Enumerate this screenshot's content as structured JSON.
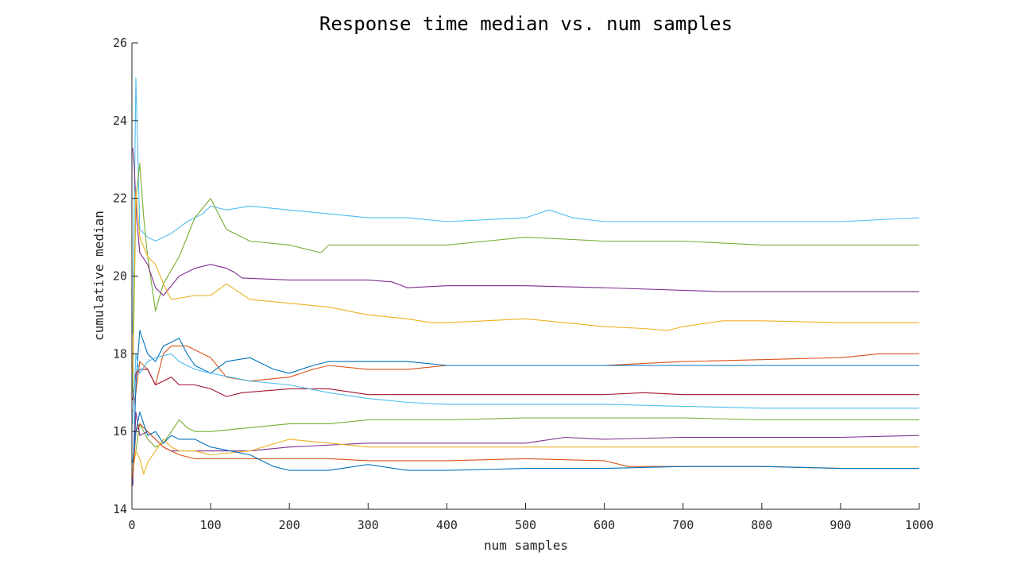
{
  "chart_data": {
    "type": "line",
    "title": "Response time median vs. num samples",
    "xlabel": "num samples",
    "ylabel": "cumulative median",
    "xlim": [
      0,
      1000
    ],
    "ylim": [
      14,
      26
    ],
    "xticks": [
      0,
      100,
      200,
      300,
      400,
      500,
      600,
      700,
      800,
      900,
      1000
    ],
    "yticks": [
      14,
      16,
      18,
      20,
      22,
      24,
      26
    ],
    "grid": false,
    "legend": "none",
    "colors": [
      "#4DBEEE",
      "#77AC30",
      "#7E2F8E",
      "#EDB120",
      "#D95319",
      "#0072BD",
      "#A2142F",
      "#4DBEEE",
      "#77AC30",
      "#7E2F8E",
      "#EDB120",
      "#D95319",
      "#0072BD"
    ],
    "series": [
      {
        "x": [
          1,
          5,
          10,
          20,
          30,
          50,
          70,
          90,
          100,
          120,
          150,
          200,
          250,
          300,
          350,
          400,
          500,
          530,
          560,
          600,
          700,
          800,
          900,
          1000
        ],
        "values": [
          18.5,
          25.1,
          21.2,
          21.0,
          20.9,
          21.1,
          21.4,
          21.6,
          21.8,
          21.7,
          21.8,
          21.7,
          21.6,
          21.5,
          21.5,
          21.4,
          21.5,
          21.7,
          21.5,
          21.4,
          21.4,
          21.4,
          21.4,
          21.5
        ]
      },
      {
        "x": [
          1,
          5,
          10,
          15,
          20,
          30,
          40,
          60,
          80,
          100,
          120,
          150,
          200,
          240,
          250,
          300,
          400,
          500,
          600,
          700,
          800,
          900,
          1000
        ],
        "values": [
          17.0,
          22.0,
          22.9,
          21.5,
          20.5,
          19.1,
          19.8,
          20.5,
          21.5,
          22.0,
          21.2,
          20.9,
          20.8,
          20.6,
          20.8,
          20.8,
          20.8,
          21.0,
          20.9,
          20.9,
          20.8,
          20.8,
          20.8
        ]
      },
      {
        "x": [
          1,
          3,
          6,
          10,
          20,
          30,
          40,
          60,
          80,
          100,
          120,
          130,
          140,
          200,
          300,
          330,
          350,
          400,
          500,
          600,
          750,
          800,
          900,
          1000
        ],
        "values": [
          23.3,
          22.8,
          21.5,
          20.6,
          20.3,
          19.7,
          19.5,
          20.0,
          20.2,
          20.3,
          20.2,
          20.1,
          19.95,
          19.9,
          19.9,
          19.85,
          19.7,
          19.75,
          19.75,
          19.7,
          19.6,
          19.6,
          19.6,
          19.6
        ]
      },
      {
        "x": [
          1,
          5,
          10,
          20,
          30,
          40,
          50,
          80,
          100,
          120,
          150,
          200,
          250,
          300,
          350,
          380,
          400,
          500,
          600,
          650,
          680,
          700,
          750,
          800,
          900,
          1000
        ],
        "values": [
          17.5,
          22.2,
          21.0,
          20.5,
          20.3,
          19.8,
          19.4,
          19.5,
          19.5,
          19.8,
          19.4,
          19.3,
          19.2,
          19.0,
          18.9,
          18.8,
          18.8,
          18.9,
          18.7,
          18.65,
          18.6,
          18.7,
          18.85,
          18.85,
          18.8,
          18.8
        ]
      },
      {
        "x": [
          1,
          5,
          10,
          20,
          30,
          40,
          50,
          60,
          70,
          80,
          100,
          120,
          150,
          200,
          230,
          250,
          300,
          350,
          400,
          500,
          600,
          700,
          800,
          900,
          950,
          1000
        ],
        "values": [
          16.5,
          17.0,
          17.8,
          17.6,
          17.2,
          18.0,
          18.2,
          18.2,
          18.2,
          18.1,
          17.9,
          17.4,
          17.3,
          17.4,
          17.6,
          17.7,
          17.6,
          17.6,
          17.7,
          17.7,
          17.7,
          17.8,
          17.85,
          17.9,
          18.0,
          18.0
        ]
      },
      {
        "x": [
          1,
          5,
          10,
          20,
          30,
          40,
          50,
          60,
          70,
          80,
          100,
          120,
          150,
          180,
          200,
          230,
          250,
          300,
          350,
          400,
          500,
          600,
          700,
          800,
          900,
          1000
        ],
        "values": [
          14.6,
          17.2,
          18.6,
          18.0,
          17.8,
          18.2,
          18.3,
          18.4,
          18.0,
          17.7,
          17.5,
          17.8,
          17.9,
          17.6,
          17.5,
          17.7,
          17.8,
          17.8,
          17.8,
          17.7,
          17.7,
          17.7,
          17.7,
          17.7,
          17.7,
          17.7
        ]
      },
      {
        "x": [
          1,
          5,
          10,
          20,
          30,
          40,
          50,
          60,
          80,
          100,
          120,
          140,
          200,
          250,
          300,
          400,
          500,
          600,
          650,
          700,
          800,
          900,
          1000
        ],
        "values": [
          16.8,
          17.5,
          17.6,
          17.6,
          17.2,
          17.3,
          17.4,
          17.2,
          17.2,
          17.1,
          16.9,
          17.0,
          17.1,
          17.1,
          16.95,
          16.95,
          16.95,
          16.95,
          17.0,
          16.95,
          16.95,
          16.95,
          16.95
        ]
      },
      {
        "x": [
          1,
          5,
          10,
          20,
          30,
          50,
          60,
          80,
          100,
          150,
          200,
          250,
          300,
          350,
          400,
          500,
          600,
          700,
          800,
          900,
          1000
        ],
        "values": [
          16.2,
          18.0,
          17.5,
          17.8,
          17.9,
          18.0,
          17.8,
          17.6,
          17.5,
          17.3,
          17.2,
          17.0,
          16.85,
          16.75,
          16.7,
          16.7,
          16.7,
          16.65,
          16.6,
          16.6,
          16.6
        ]
      },
      {
        "x": [
          1,
          5,
          10,
          20,
          30,
          40,
          50,
          60,
          70,
          80,
          100,
          150,
          200,
          250,
          300,
          400,
          500,
          600,
          700,
          800,
          900,
          1000
        ],
        "values": [
          15.0,
          15.5,
          16.2,
          15.8,
          15.6,
          15.7,
          16.0,
          16.3,
          16.1,
          16.0,
          16.0,
          16.1,
          16.2,
          16.2,
          16.3,
          16.3,
          16.35,
          16.35,
          16.35,
          16.3,
          16.3,
          16.3
        ]
      },
      {
        "x": [
          1,
          5,
          10,
          20,
          30,
          40,
          50,
          60,
          80,
          100,
          150,
          200,
          300,
          400,
          500,
          550,
          600,
          700,
          800,
          900,
          1000
        ],
        "values": [
          14.6,
          16.5,
          15.9,
          16.0,
          15.8,
          15.6,
          15.5,
          15.5,
          15.5,
          15.5,
          15.5,
          15.6,
          15.7,
          15.7,
          15.7,
          15.85,
          15.8,
          15.85,
          15.85,
          15.85,
          15.9
        ]
      },
      {
        "x": [
          1,
          5,
          10,
          15,
          20,
          30,
          40,
          50,
          60,
          80,
          100,
          150,
          200,
          250,
          300,
          400,
          500,
          600,
          700,
          800,
          900,
          1000
        ],
        "values": [
          15.0,
          15.5,
          15.3,
          14.9,
          15.2,
          15.5,
          15.8,
          15.6,
          15.5,
          15.5,
          15.4,
          15.5,
          15.8,
          15.7,
          15.6,
          15.6,
          15.6,
          15.6,
          15.6,
          15.6,
          15.6,
          15.6
        ]
      },
      {
        "x": [
          1,
          5,
          10,
          20,
          30,
          40,
          50,
          60,
          80,
          100,
          150,
          200,
          250,
          300,
          400,
          500,
          600,
          630,
          700,
          800,
          900,
          1000
        ],
        "values": [
          14.8,
          16.0,
          16.2,
          16.0,
          15.8,
          15.6,
          15.5,
          15.4,
          15.3,
          15.3,
          15.3,
          15.3,
          15.3,
          15.25,
          15.25,
          15.3,
          15.25,
          15.1,
          15.1,
          15.1,
          15.05,
          15.05
        ]
      },
      {
        "x": [
          1,
          5,
          10,
          20,
          30,
          40,
          50,
          60,
          80,
          100,
          150,
          180,
          200,
          250,
          300,
          350,
          400,
          500,
          600,
          700,
          800,
          900,
          1000
        ],
        "values": [
          15.2,
          16.0,
          16.5,
          15.9,
          16.0,
          15.7,
          15.9,
          15.8,
          15.8,
          15.6,
          15.4,
          15.1,
          15.0,
          15.0,
          15.15,
          15.0,
          15.0,
          15.05,
          15.05,
          15.1,
          15.1,
          15.05,
          15.05
        ]
      }
    ]
  }
}
